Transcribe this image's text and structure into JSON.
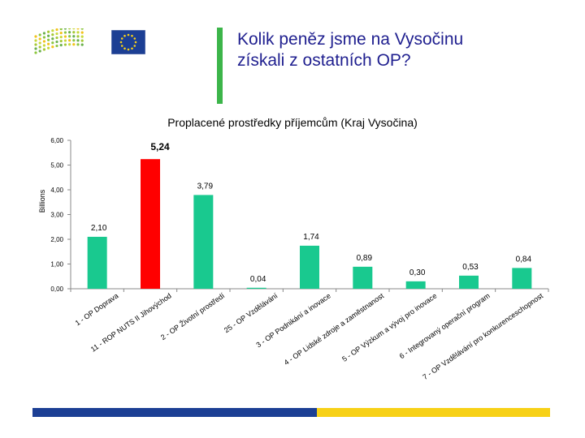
{
  "heading": {
    "line1": "Kolik peněz jsme na Vysočinu",
    "line2": "získali z ostatních OP?"
  },
  "logos": {
    "left_name": "program-logo",
    "right_name": "eu-flag"
  },
  "colors": {
    "bar": "#19c98f",
    "highlight": "#ff0000",
    "heading": "#1f1f8f",
    "accent": "#3cb54a",
    "footer_blue": "#1c3f94",
    "footer_yellow": "#f7d117"
  },
  "chart_data": {
    "type": "bar",
    "title": "Proplacené prostředky příjemcům (Kraj Vysočina)",
    "ylabel": "Billions",
    "xlabel": "",
    "ylim": [
      0,
      6
    ],
    "yticks": [
      "0,00",
      "1,00",
      "2,00",
      "3,00",
      "4,00",
      "5,00",
      "6,00"
    ],
    "grid": false,
    "categories": [
      "1 - OP Doprava",
      "11 - ROP NUTS II Jihovýchod",
      "2 - OP Životní prostředí",
      "25 - OP Vzdělávání",
      "3 - OP Podnikání a inovace",
      "4 - OP Lidské zdroje a zaměstnanost",
      "5 - OP Výzkum a vývoj pro inovace",
      "6 - Integrovaný operační program",
      "7 - OP Vzdělávání pro konkurenceschopnost"
    ],
    "values": [
      2.1,
      5.24,
      3.79,
      0.04,
      1.74,
      0.89,
      0.3,
      0.53,
      0.84
    ],
    "value_labels": [
      "2,10",
      "5,24",
      "3,79",
      "0,04",
      "1,74",
      "0,89",
      "0,30",
      "0,53",
      "0,84"
    ],
    "highlight_index": 1
  }
}
